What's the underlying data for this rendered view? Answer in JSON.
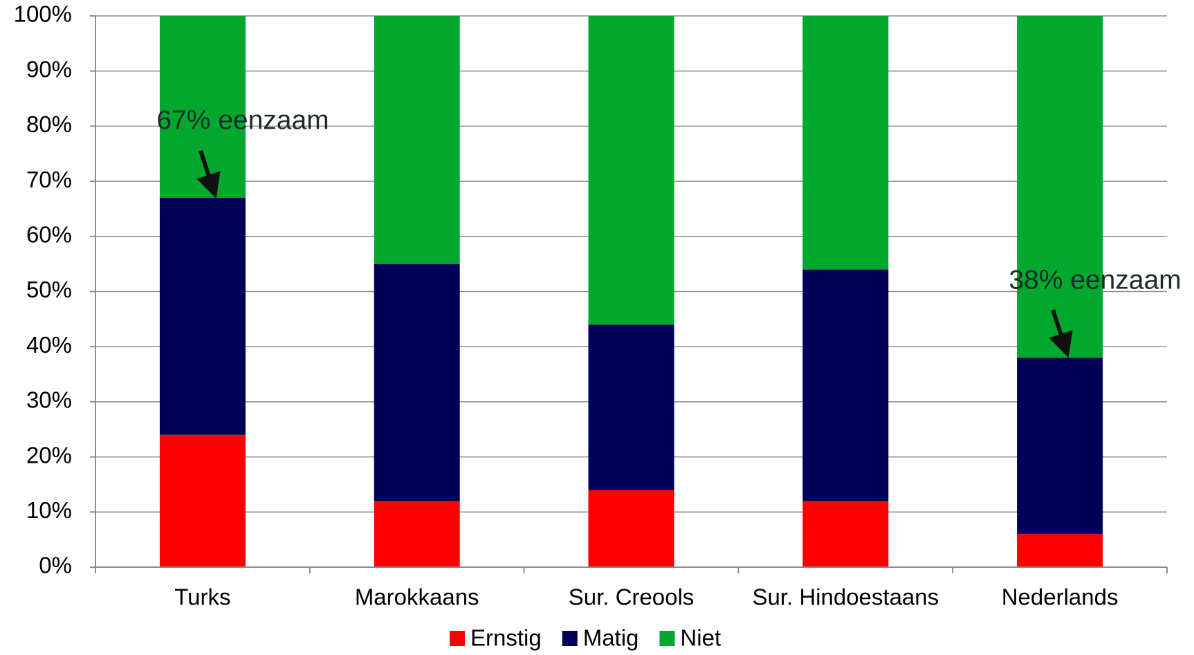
{
  "chart_data": {
    "type": "stacked_bar",
    "categories": [
      "Turks",
      "Marokkaans",
      "Sur. Creools",
      "Sur. Hindoestaans",
      "Nederlands"
    ],
    "series": [
      {
        "name": "Ernstig",
        "color": "#ff0000",
        "values": [
          24,
          12,
          14,
          12,
          6
        ]
      },
      {
        "name": "Matig",
        "color": "#000059",
        "values": [
          43,
          43,
          30,
          42,
          32
        ]
      },
      {
        "name": "Niet",
        "color": "#00a82d",
        "values": [
          33,
          45,
          56,
          46,
          62
        ]
      }
    ],
    "ylim": [
      0,
      100
    ],
    "yticks": [
      {
        "value": 0,
        "label": "0%"
      },
      {
        "value": 10,
        "label": "10%"
      },
      {
        "value": 20,
        "label": "20%"
      },
      {
        "value": 30,
        "label": "30%"
      },
      {
        "value": 40,
        "label": "40%"
      },
      {
        "value": 50,
        "label": "50%"
      },
      {
        "value": 60,
        "label": "60%"
      },
      {
        "value": 70,
        "label": "70%"
      },
      {
        "value": 80,
        "label": "80%"
      },
      {
        "value": 90,
        "label": "90%"
      },
      {
        "value": 100,
        "label": "100%"
      }
    ],
    "grid": true,
    "legend": "bottom",
    "annotations": [
      "67% eenzaam",
      "38% eenzaam"
    ]
  }
}
